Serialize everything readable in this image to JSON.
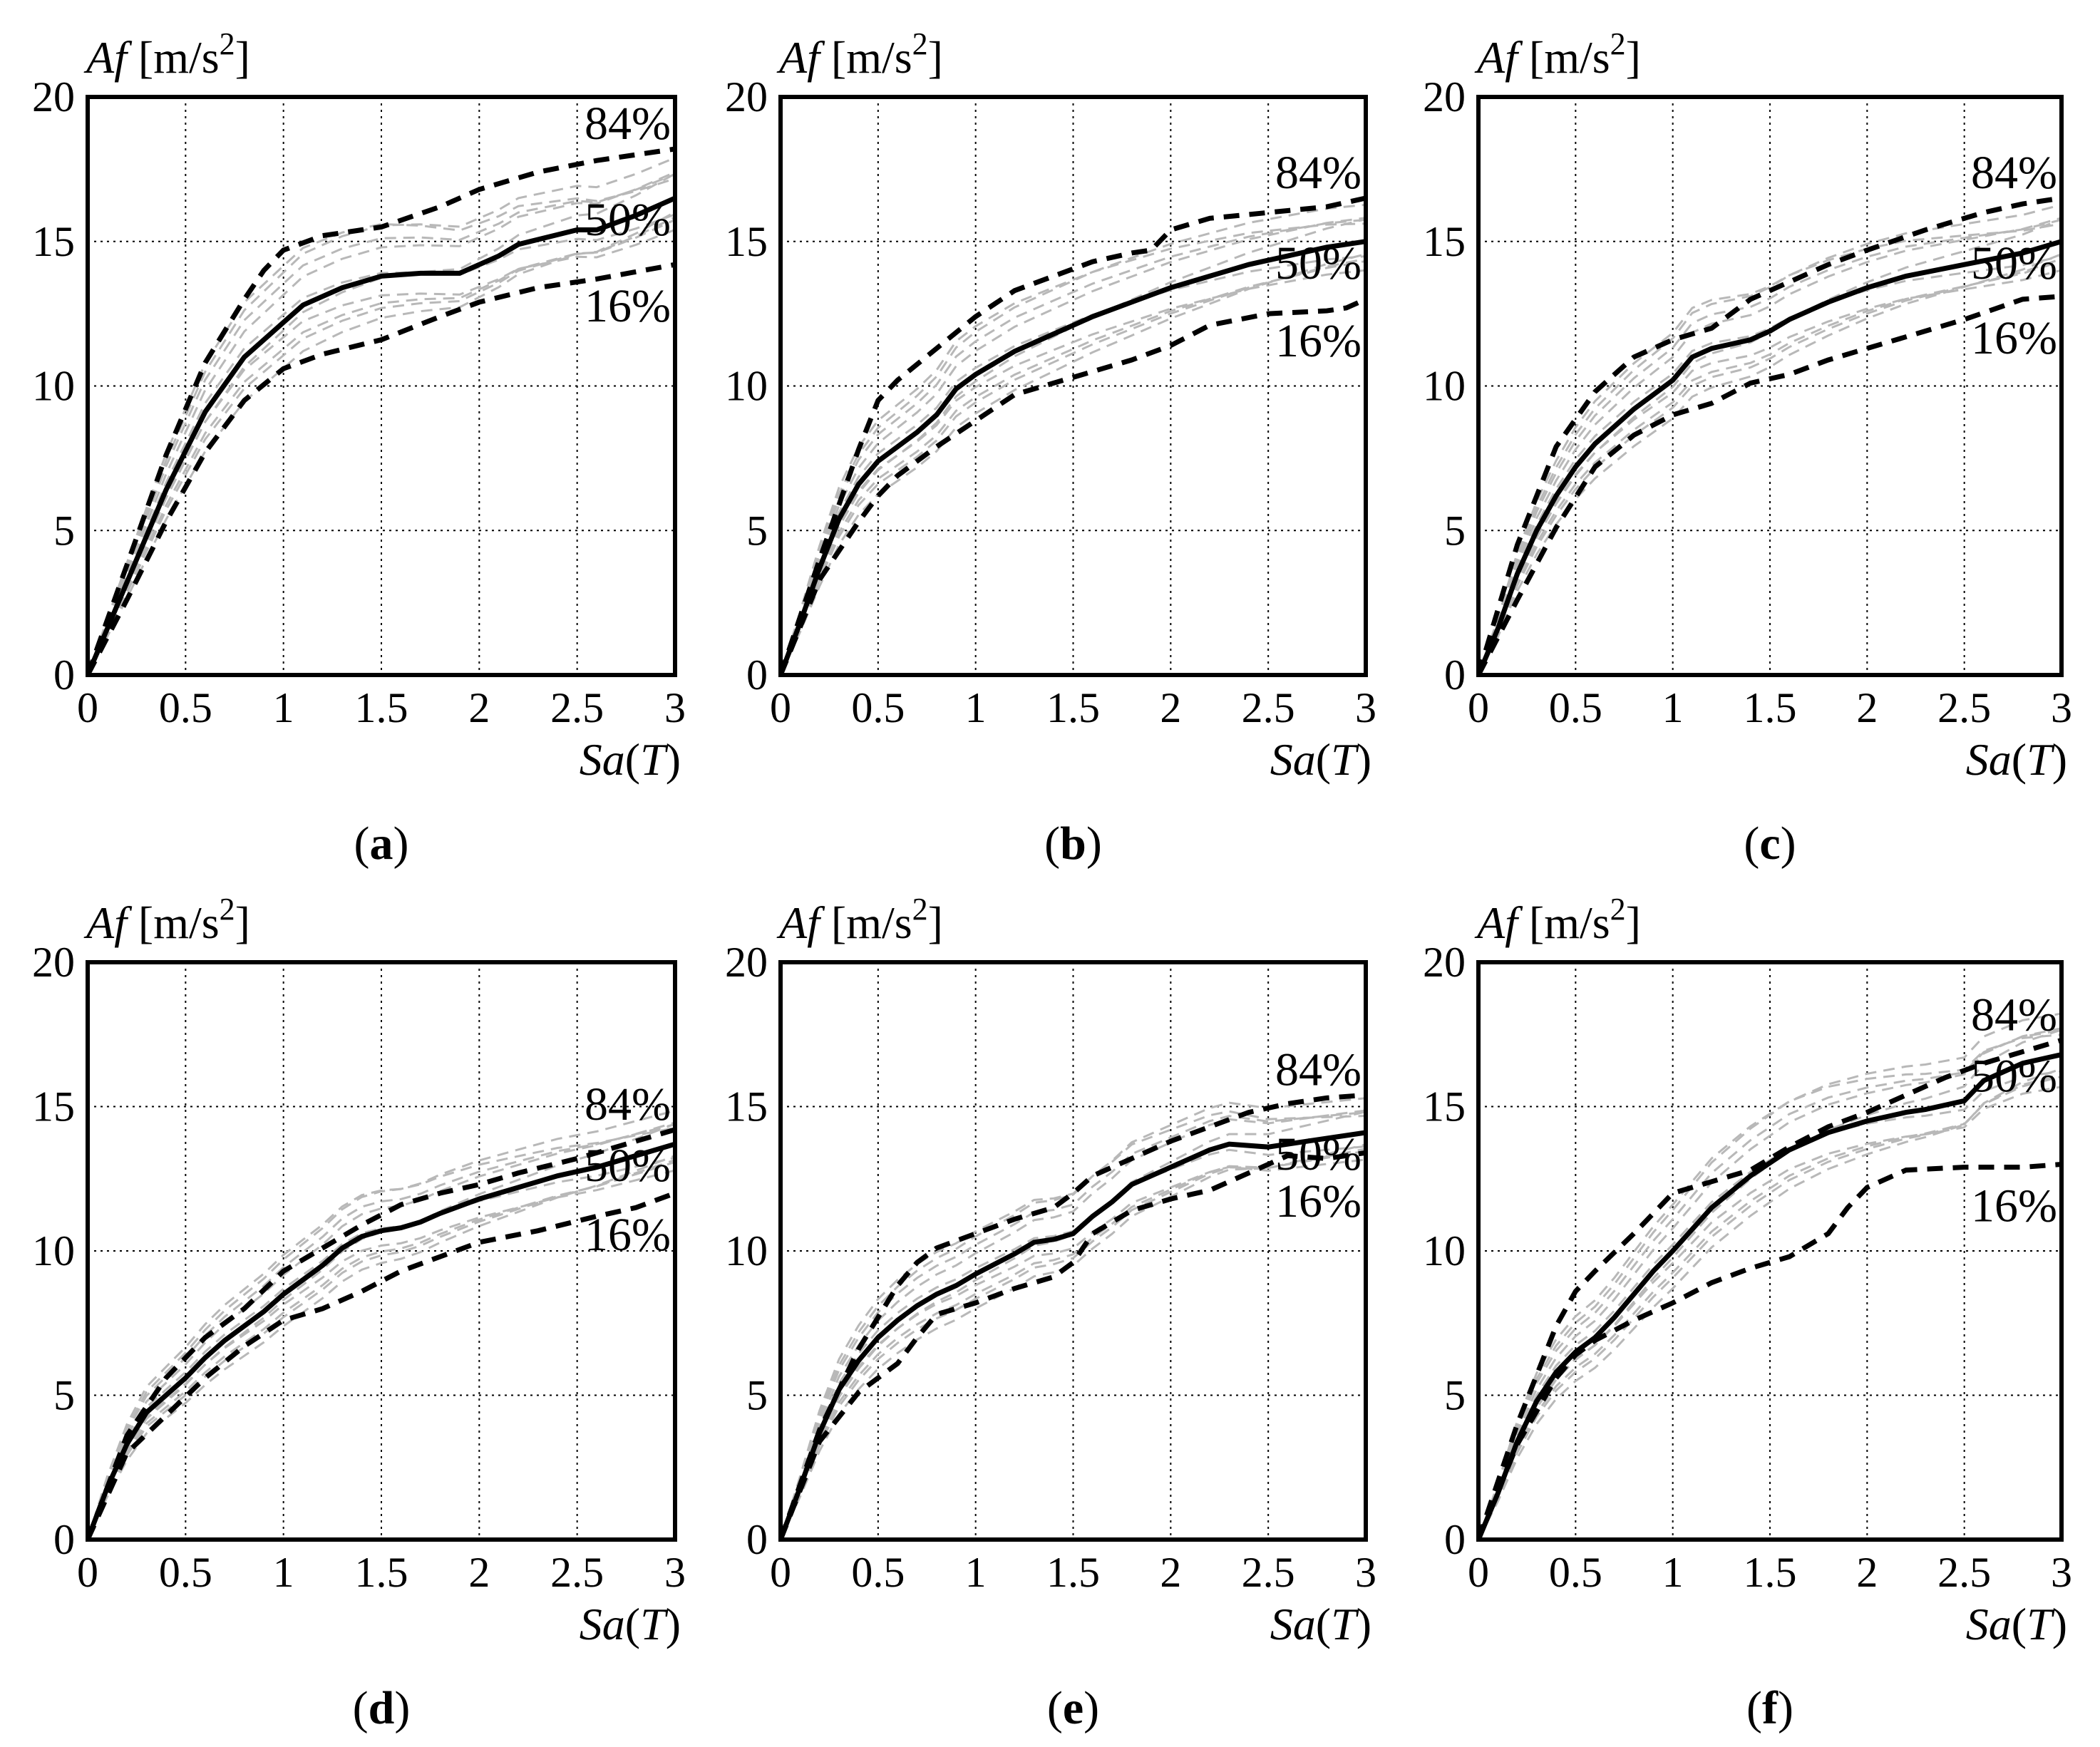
{
  "chart_data": [
    {
      "type": "line",
      "panel": "a",
      "caption": "(a)",
      "ylabel": "Af [m/s2]",
      "xlabel": "Sa(T)",
      "xlim": [
        0,
        3
      ],
      "ylim": [
        0,
        20
      ],
      "xticks": [
        "0",
        "0.5",
        "1",
        "1.5",
        "2",
        "2.5",
        "3"
      ],
      "yticks": [
        "0",
        "5",
        "10",
        "15",
        "20"
      ],
      "grid": true,
      "series": [
        {
          "name": "50%",
          "style": "median",
          "x": [
            0,
            0.2,
            0.4,
            0.6,
            0.8,
            1.0,
            1.1,
            1.3,
            1.5,
            1.7,
            1.9,
            2.1,
            2.2,
            2.5,
            2.6,
            2.8,
            3.0
          ],
          "y": [
            0,
            3.2,
            6.4,
            9.1,
            11.0,
            12.2,
            12.8,
            13.4,
            13.8,
            13.9,
            13.9,
            14.5,
            14.9,
            15.4,
            15.4,
            15.9,
            16.5
          ]
        },
        {
          "name": "84%",
          "style": "percentile",
          "x": [
            0,
            0.2,
            0.4,
            0.6,
            0.8,
            0.9,
            1.0,
            1.2,
            1.5,
            1.8,
            2.0,
            2.3,
            2.6,
            3.0
          ],
          "y": [
            0,
            3.8,
            7.6,
            10.8,
            13.0,
            14.0,
            14.7,
            15.2,
            15.5,
            16.2,
            16.8,
            17.4,
            17.8,
            18.2
          ]
        },
        {
          "name": "16%",
          "style": "percentile",
          "x": [
            0,
            0.2,
            0.4,
            0.6,
            0.8,
            1.0,
            1.2,
            1.5,
            1.8,
            2.0,
            2.3,
            2.6,
            3.0
          ],
          "y": [
            0,
            2.6,
            5.3,
            7.7,
            9.5,
            10.6,
            11.1,
            11.6,
            12.4,
            12.9,
            13.4,
            13.7,
            14.2
          ]
        }
      ],
      "labels": [
        "84%",
        "50%",
        "16%"
      ]
    },
    {
      "type": "line",
      "panel": "b",
      "caption": "(b)",
      "ylabel": "Af [m/s2]",
      "xlabel": "Sa(T)",
      "xlim": [
        0,
        3
      ],
      "ylim": [
        0,
        20
      ],
      "xticks": [
        "0",
        "0.5",
        "1",
        "1.5",
        "2",
        "2.5",
        "3"
      ],
      "yticks": [
        "0",
        "5",
        "10",
        "15",
        "20"
      ],
      "grid": true,
      "series": [
        {
          "name": "50%",
          "style": "median",
          "x": [
            0,
            0.1,
            0.2,
            0.3,
            0.4,
            0.5,
            0.6,
            0.7,
            0.8,
            0.9,
            1.0,
            1.2,
            1.4,
            1.6,
            1.8,
            2.0,
            2.2,
            2.4,
            2.6,
            2.8,
            3.0
          ],
          "y": [
            0,
            1.8,
            3.7,
            5.4,
            6.6,
            7.4,
            7.9,
            8.4,
            9.0,
            9.9,
            10.4,
            11.2,
            11.8,
            12.4,
            12.9,
            13.4,
            13.8,
            14.2,
            14.5,
            14.8,
            15.0
          ]
        },
        {
          "name": "84%",
          "style": "percentile",
          "x": [
            0,
            0.2,
            0.4,
            0.5,
            0.6,
            0.8,
            1.0,
            1.2,
            1.4,
            1.6,
            1.8,
            1.9,
            2.0,
            2.2,
            2.5,
            2.8,
            3.0
          ],
          "y": [
            0,
            4.0,
            7.8,
            9.5,
            10.2,
            11.3,
            12.4,
            13.3,
            13.8,
            14.3,
            14.6,
            14.7,
            15.4,
            15.8,
            16.0,
            16.2,
            16.5
          ]
        },
        {
          "name": "16%",
          "style": "percentile",
          "x": [
            0,
            0.2,
            0.4,
            0.5,
            0.6,
            0.8,
            1.0,
            1.2,
            1.5,
            1.8,
            2.0,
            2.2,
            2.5,
            2.8,
            2.9,
            3.0
          ],
          "y": [
            0,
            3.3,
            5.3,
            6.2,
            6.9,
            7.9,
            8.8,
            9.7,
            10.3,
            10.9,
            11.4,
            12.1,
            12.5,
            12.6,
            12.7,
            13.0
          ]
        }
      ],
      "labels": [
        "84%",
        "50%",
        "16%"
      ]
    },
    {
      "type": "line",
      "panel": "c",
      "caption": "(c)",
      "ylabel": "Af [m/s2]",
      "xlabel": "Sa(T)",
      "xlim": [
        0,
        3
      ],
      "ylim": [
        0,
        20
      ],
      "xticks": [
        "0",
        "0.5",
        "1",
        "1.5",
        "2",
        "2.5",
        "3"
      ],
      "yticks": [
        "0",
        "5",
        "10",
        "15",
        "20"
      ],
      "grid": true,
      "series": [
        {
          "name": "50%",
          "style": "median",
          "x": [
            0,
            0.1,
            0.2,
            0.3,
            0.4,
            0.5,
            0.6,
            0.8,
            1.0,
            1.1,
            1.2,
            1.4,
            1.5,
            1.6,
            1.8,
            2.0,
            2.2,
            2.5,
            2.8,
            3.0
          ],
          "y": [
            0,
            1.6,
            3.5,
            5.0,
            6.2,
            7.2,
            8.0,
            9.2,
            10.2,
            11.0,
            11.3,
            11.6,
            11.9,
            12.3,
            12.9,
            13.4,
            13.8,
            14.2,
            14.6,
            15.0
          ]
        },
        {
          "name": "84%",
          "style": "percentile",
          "x": [
            0,
            0.2,
            0.4,
            0.6,
            0.8,
            1.0,
            1.2,
            1.4,
            1.6,
            1.8,
            2.0,
            2.3,
            2.6,
            2.8,
            3.0
          ],
          "y": [
            0,
            4.5,
            7.9,
            9.8,
            11.0,
            11.6,
            12.0,
            13.0,
            13.6,
            14.2,
            14.7,
            15.4,
            16.0,
            16.3,
            16.5
          ]
        },
        {
          "name": "16%",
          "style": "percentile",
          "x": [
            0,
            0.2,
            0.4,
            0.6,
            0.8,
            1.0,
            1.2,
            1.4,
            1.6,
            1.8,
            2.0,
            2.2,
            2.5,
            2.8,
            3.0
          ],
          "y": [
            0,
            2.6,
            5.1,
            7.2,
            8.3,
            9.0,
            9.4,
            10.1,
            10.4,
            10.9,
            11.3,
            11.7,
            12.3,
            13.0,
            13.1
          ]
        }
      ],
      "labels": [
        "84%",
        "50%",
        "16%"
      ]
    },
    {
      "type": "line",
      "panel": "d",
      "caption": "(d)",
      "ylabel": "Af [m/s2]",
      "xlabel": "Sa(T)",
      "xlim": [
        0,
        3
      ],
      "ylim": [
        0,
        20
      ],
      "xticks": [
        "0",
        "0.5",
        "1",
        "1.5",
        "2",
        "2.5",
        "3"
      ],
      "yticks": [
        "0",
        "5",
        "10",
        "15",
        "20"
      ],
      "grid": true,
      "series": [
        {
          "name": "50%",
          "style": "median",
          "x": [
            0,
            0.1,
            0.2,
            0.3,
            0.4,
            0.5,
            0.6,
            0.7,
            0.8,
            0.9,
            1.0,
            1.1,
            1.2,
            1.3,
            1.4,
            1.5,
            1.6,
            1.7,
            1.8,
            2.0,
            2.2,
            2.4,
            2.6,
            2.8,
            3.0
          ],
          "y": [
            0,
            1.8,
            3.3,
            4.4,
            5.0,
            5.6,
            6.3,
            6.9,
            7.4,
            7.9,
            8.5,
            9.0,
            9.5,
            10.1,
            10.5,
            10.7,
            10.8,
            11.0,
            11.3,
            11.8,
            12.2,
            12.6,
            12.9,
            13.3,
            13.7
          ]
        },
        {
          "name": "84%",
          "style": "percentile",
          "x": [
            0,
            0.2,
            0.4,
            0.6,
            0.8,
            1.0,
            1.2,
            1.4,
            1.6,
            1.8,
            2.0,
            2.2,
            2.5,
            2.8,
            3.0
          ],
          "y": [
            0,
            3.6,
            5.6,
            7.0,
            8.0,
            9.3,
            10.1,
            10.9,
            11.6,
            12.0,
            12.3,
            12.7,
            13.2,
            13.8,
            14.2
          ]
        },
        {
          "name": "16%",
          "style": "percentile",
          "x": [
            0,
            0.2,
            0.4,
            0.6,
            0.8,
            1.0,
            1.2,
            1.4,
            1.6,
            1.8,
            2.0,
            2.3,
            2.6,
            2.8,
            3.0
          ],
          "y": [
            0,
            3.0,
            4.3,
            5.6,
            6.7,
            7.6,
            8.0,
            8.6,
            9.3,
            9.8,
            10.3,
            10.7,
            11.2,
            11.5,
            12.0
          ]
        }
      ],
      "labels": [
        "84%",
        "50%",
        "16%"
      ]
    },
    {
      "type": "line",
      "panel": "e",
      "caption": "(e)",
      "ylabel": "Af [m/s2]",
      "xlabel": "Sa(T)",
      "xlim": [
        0,
        3
      ],
      "ylim": [
        0,
        20
      ],
      "xticks": [
        "0",
        "0.5",
        "1",
        "1.5",
        "2",
        "2.5",
        "3"
      ],
      "yticks": [
        "0",
        "5",
        "10",
        "15",
        "20"
      ],
      "grid": true,
      "series": [
        {
          "name": "50%",
          "style": "median",
          "x": [
            0,
            0.1,
            0.2,
            0.3,
            0.4,
            0.5,
            0.6,
            0.7,
            0.8,
            0.9,
            1.0,
            1.2,
            1.3,
            1.4,
            1.5,
            1.6,
            1.7,
            1.8,
            2.0,
            2.2,
            2.3,
            2.5,
            2.7,
            2.9,
            3.0
          ],
          "y": [
            0,
            1.8,
            3.7,
            5.2,
            6.2,
            7.0,
            7.6,
            8.1,
            8.5,
            8.8,
            9.2,
            9.9,
            10.3,
            10.4,
            10.6,
            11.2,
            11.7,
            12.3,
            12.9,
            13.5,
            13.7,
            13.6,
            13.8,
            14.0,
            14.1
          ]
        },
        {
          "name": "84%",
          "style": "percentile",
          "x": [
            0,
            0.2,
            0.4,
            0.5,
            0.6,
            0.7,
            0.8,
            1.0,
            1.2,
            1.4,
            1.5,
            1.6,
            1.8,
            2.0,
            2.2,
            2.4,
            2.6,
            2.8,
            3.0
          ],
          "y": [
            0,
            3.8,
            6.6,
            7.7,
            8.8,
            9.6,
            10.1,
            10.6,
            11.1,
            11.5,
            12.0,
            12.6,
            13.2,
            13.8,
            14.3,
            14.8,
            15.1,
            15.3,
            15.4
          ]
        },
        {
          "name": "16%",
          "style": "percentile",
          "x": [
            0,
            0.2,
            0.4,
            0.5,
            0.6,
            0.7,
            0.8,
            1.0,
            1.2,
            1.4,
            1.5,
            1.6,
            1.8,
            2.0,
            2.2,
            2.4,
            2.6,
            2.8,
            3.0
          ],
          "y": [
            0,
            3.4,
            5.1,
            5.6,
            6.1,
            7.0,
            7.8,
            8.2,
            8.7,
            9.1,
            9.6,
            10.6,
            11.4,
            11.8,
            12.1,
            12.7,
            13.3,
            13.2,
            13.4
          ]
        }
      ],
      "labels": [
        "84%",
        "50%",
        "16%"
      ]
    },
    {
      "type": "line",
      "panel": "f",
      "caption": "(f)",
      "ylabel": "Af [m/s2]",
      "xlabel": "Sa(T)",
      "xlim": [
        0,
        3
      ],
      "ylim": [
        0,
        20
      ],
      "xticks": [
        "0",
        "0.5",
        "1",
        "1.5",
        "2",
        "2.5",
        "3"
      ],
      "yticks": [
        "0",
        "5",
        "10",
        "15",
        "20"
      ],
      "grid": true,
      "series": [
        {
          "name": "50%",
          "style": "median",
          "x": [
            0,
            0.1,
            0.2,
            0.3,
            0.4,
            0.5,
            0.6,
            0.7,
            0.8,
            0.9,
            1.0,
            1.2,
            1.4,
            1.6,
            1.8,
            2.0,
            2.2,
            2.3,
            2.5,
            2.6,
            2.8,
            3.0
          ],
          "y": [
            0,
            1.6,
            3.4,
            4.8,
            5.8,
            6.5,
            7.0,
            7.7,
            8.5,
            9.3,
            10.0,
            11.5,
            12.6,
            13.5,
            14.1,
            14.5,
            14.8,
            14.9,
            15.2,
            15.9,
            16.5,
            16.8
          ]
        },
        {
          "name": "84%",
          "style": "percentile",
          "x": [
            0,
            0.2,
            0.4,
            0.5,
            0.6,
            0.8,
            0.9,
            1.0,
            1.2,
            1.4,
            1.6,
            1.8,
            2.0,
            2.2,
            2.4,
            2.6,
            2.8,
            3.0
          ],
          "y": [
            0,
            4.0,
            7.4,
            8.6,
            9.3,
            10.6,
            11.3,
            12.0,
            12.4,
            12.8,
            13.6,
            14.3,
            14.8,
            15.4,
            16.0,
            16.5,
            16.9,
            17.3
          ]
        },
        {
          "name": "16%",
          "style": "percentile",
          "x": [
            0,
            0.2,
            0.4,
            0.5,
            0.6,
            0.8,
            1.0,
            1.2,
            1.4,
            1.6,
            1.8,
            1.9,
            2.0,
            2.2,
            2.5,
            2.8,
            3.0
          ],
          "y": [
            0,
            3.3,
            5.6,
            6.4,
            6.9,
            7.6,
            8.2,
            8.9,
            9.4,
            9.8,
            10.6,
            11.5,
            12.2,
            12.8,
            12.9,
            12.9,
            13.0
          ]
        }
      ],
      "labels": [
        "84%",
        "50%",
        "16%"
      ]
    }
  ]
}
